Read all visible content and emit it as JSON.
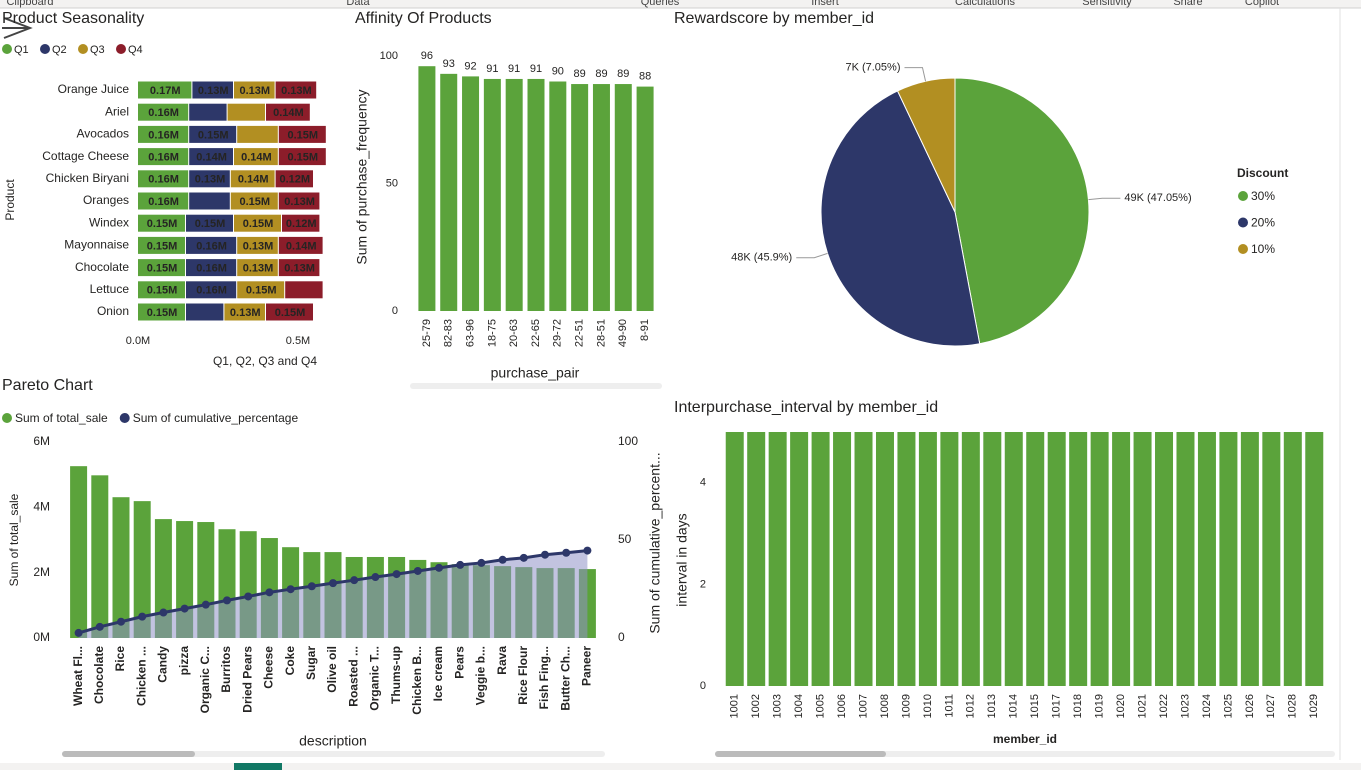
{
  "ribbon": {
    "groups": [
      "Clipboard",
      "Data",
      "Queries",
      "Insert",
      "Calculations",
      "Sensitivity",
      "Share",
      "Copilot"
    ]
  },
  "chart_data": [
    {
      "type": "hstack",
      "title": "Product Seasonality",
      "y_label": "Product",
      "x_label": "Q1, Q2, Q3 and Q4",
      "categories": [
        "Orange Juice",
        "Ariel",
        "Avocados",
        "Cottage Cheese",
        "Chicken Biryani",
        "Oranges",
        "Windex",
        "Mayonnaise",
        "Chocolate",
        "Lettuce",
        "Onion"
      ],
      "series": [
        {
          "name": "Q1",
          "color": "#5ba33b",
          "values": [
            0.17,
            0.16,
            0.16,
            0.16,
            0.16,
            0.16,
            0.15,
            0.15,
            0.15,
            0.15,
            0.15
          ],
          "value_labels": [
            "0.17M",
            "0.16M",
            "0.16M",
            "0.16M",
            "0.16M",
            "0.16M",
            "0.15M",
            "0.15M",
            "0.15M",
            "0.15M",
            "0.15M"
          ]
        },
        {
          "name": "Q2",
          "color": "#2d3769",
          "values": [
            0.13,
            0.12,
            0.15,
            0.14,
            0.13,
            0.13,
            0.15,
            0.16,
            0.16,
            0.16,
            0.12
          ],
          "value_labels": [
            "0.13M",
            null,
            "0.15M",
            "0.14M",
            "0.13M",
            null,
            "0.15M",
            "0.16M",
            "0.16M",
            "0.16M",
            null
          ]
        },
        {
          "name": "Q3",
          "color": "#b28f22",
          "values": [
            0.13,
            0.12,
            0.13,
            0.14,
            0.14,
            0.15,
            0.15,
            0.13,
            0.13,
            0.15,
            0.13
          ],
          "value_labels": [
            "0.13M",
            null,
            null,
            "0.14M",
            "0.14M",
            "0.15M",
            "0.15M",
            "0.13M",
            "0.13M",
            "0.15M",
            "0.13M"
          ]
        },
        {
          "name": "Q4",
          "color": "#8c1d2a",
          "values": [
            0.13,
            0.14,
            0.15,
            0.15,
            0.12,
            0.13,
            0.12,
            0.14,
            0.13,
            0.12,
            0.15
          ],
          "value_labels": [
            "0.13M",
            "0.14M",
            "0.15M",
            "0.15M",
            "0.12M",
            "0.13M",
            "0.12M",
            "0.14M",
            "0.13M",
            null,
            "0.15M"
          ]
        }
      ],
      "xlim": [
        0,
        0.6
      ],
      "xticks": [
        {
          "value": 0,
          "label": "0.0M"
        },
        {
          "value": 0.5,
          "label": "0.5M"
        }
      ]
    },
    {
      "type": "bar",
      "title": "Affinity Of Products",
      "x_label": "purchase_pair",
      "y_label": "Sum of purchase_frequency",
      "categories": [
        "25-79",
        "82-83",
        "63-96",
        "18-75",
        "20-63",
        "22-65",
        "29-72",
        "22-51",
        "28-51",
        "49-90",
        "8-91"
      ],
      "values": [
        96,
        93,
        92,
        91,
        91,
        91,
        90,
        89,
        89,
        89,
        88
      ],
      "color": "#5ba33b",
      "ylim": [
        0,
        100
      ],
      "yticks": [
        0,
        50,
        100
      ]
    },
    {
      "type": "pie",
      "title": "Rewardscore by member_id",
      "legend_title": "Discount",
      "categories": [
        "30%",
        "20%",
        "10%"
      ],
      "values": [
        47.05,
        45.9,
        7.05
      ],
      "value_labels": [
        "49K (47.05%)",
        "48K (45.9%)",
        "7K (7.05%)"
      ],
      "colors": [
        "#5ba33b",
        "#2d3769",
        "#b28f22"
      ]
    },
    {
      "type": "combo",
      "title": "Pareto Chart",
      "x_label": "description",
      "y_label": "Sum of total_sale",
      "y2_label": "Sum of cumulative_percent...",
      "categories": [
        "Wheat Fl...",
        "Chocolate",
        "Rice",
        "Chicken ...",
        "Candy",
        "pizza",
        "Organic C...",
        "Burritos",
        "Dried Pears",
        "Cheese",
        "Coke",
        "Sugar",
        "Olive oil",
        "Roasted ...",
        "Organic T...",
        "Thums-up",
        "Chicken B...",
        "Ice cream",
        "Pears",
        "Veggie b...",
        "Rava",
        "Rice Flour",
        "Fish Fing...",
        "Butter Ch...",
        "Paneer"
      ],
      "series": [
        {
          "name": "Sum of total_sale",
          "color": "#5ba33b",
          "values": [
            5.26,
            4.98,
            4.31,
            4.19,
            3.64,
            3.58,
            3.55,
            3.33,
            3.27,
            3.06,
            2.78,
            2.63,
            2.63,
            2.48,
            2.48,
            2.48,
            2.39,
            2.32,
            2.26,
            2.23,
            2.2,
            2.17,
            2.14,
            2.14,
            2.11
          ]
        },
        {
          "name": "Sum of cumulative_percentage",
          "color": "#2d3769",
          "axis": "y2",
          "values": [
            2.6,
            5.7,
            8.3,
            10.9,
            13,
            15,
            17,
            19.2,
            21.2,
            23.3,
            24.9,
            26.4,
            28,
            29.5,
            31.1,
            32.6,
            34.2,
            35.8,
            37.3,
            38.3,
            39.9,
            40.9,
            42.5,
            43.5,
            44.6
          ]
        }
      ],
      "ylim": [
        0,
        6
      ],
      "yticks": [
        {
          "value": 0,
          "label": "0M"
        },
        {
          "value": 2,
          "label": "2M"
        },
        {
          "value": 4,
          "label": "4M"
        },
        {
          "value": 6,
          "label": "6M"
        }
      ],
      "y2lim": [
        0,
        100
      ],
      "y2ticks": [
        0,
        50,
        100
      ]
    },
    {
      "type": "bar",
      "title": "Interpurchase_interval by member_id",
      "x_label": "member_id",
      "y_label": "interval in days",
      "categories": [
        "1001",
        "1002",
        "1003",
        "1004",
        "1005",
        "1006",
        "1007",
        "1008",
        "1009",
        "1010",
        "1011",
        "1012",
        "1013",
        "1014",
        "1015",
        "1017",
        "1018",
        "1019",
        "1020",
        "1021",
        "1022",
        "1023",
        "1024",
        "1025",
        "1026",
        "1027",
        "1028",
        "1029"
      ],
      "values": [
        5,
        5,
        5,
        5,
        5,
        5,
        5,
        5,
        5,
        5,
        5,
        5,
        5,
        5,
        5,
        5,
        5,
        5,
        5,
        5,
        5,
        5,
        5,
        5,
        5,
        5,
        5,
        5
      ],
      "color": "#5ba33b",
      "ylim": [
        0,
        5
      ],
      "yticks": [
        0,
        2,
        4
      ]
    }
  ]
}
